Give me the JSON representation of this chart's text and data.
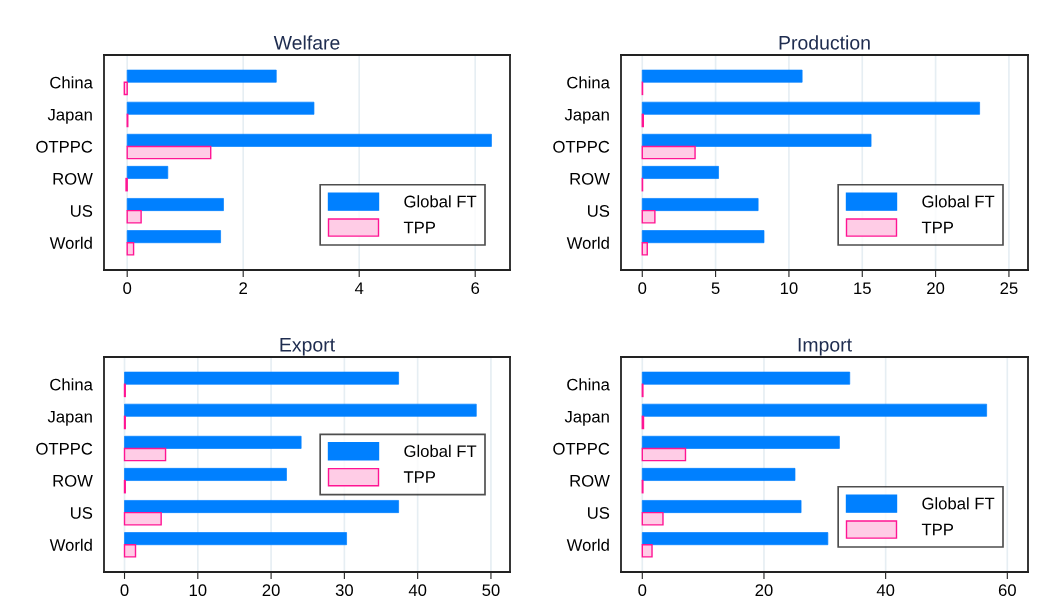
{
  "chart_data": [
    {
      "type": "bar",
      "orientation": "horizontal",
      "title": "Welfare",
      "categories": [
        "China",
        "Japan",
        "OTPPC",
        "ROW",
        "US",
        "World"
      ],
      "series": [
        {
          "name": "Global FT",
          "color": "#0080ff",
          "values": [
            2.57,
            3.22,
            6.28,
            0.7,
            1.66,
            1.61
          ]
        },
        {
          "name": "TPP",
          "color": "#ffcce6",
          "values": [
            -0.05,
            0.01,
            1.44,
            -0.02,
            0.24,
            0.11
          ]
        }
      ],
      "xlim": [
        -0.4,
        6.6
      ],
      "xticks": [
        0,
        2,
        4,
        6
      ],
      "grid": "x",
      "legend": "lower right"
    },
    {
      "type": "bar",
      "orientation": "horizontal",
      "title": "Production",
      "categories": [
        "China",
        "Japan",
        "OTPPC",
        "ROW",
        "US",
        "World"
      ],
      "series": [
        {
          "name": "Global FT",
          "color": "#0080ff",
          "values": [
            10.9,
            23.0,
            15.6,
            5.2,
            7.9,
            8.3
          ]
        },
        {
          "name": "TPP",
          "color": "#ffcce6",
          "values": [
            0.02,
            0.07,
            3.6,
            0.02,
            0.86,
            0.34
          ]
        }
      ],
      "xlim": [
        -1.45,
        26.3
      ],
      "xticks": [
        0,
        5,
        10,
        15,
        20,
        25
      ],
      "grid": "x",
      "legend": "lower right"
    },
    {
      "type": "bar",
      "orientation": "horizontal",
      "title": "Export",
      "categories": [
        "China",
        "Japan",
        "OTPPC",
        "ROW",
        "US",
        "World"
      ],
      "series": [
        {
          "name": "Global FT",
          "color": "#0080ff",
          "values": [
            37.4,
            48.0,
            24.1,
            22.1,
            37.4,
            30.3
          ]
        },
        {
          "name": "TPP",
          "color": "#ffcce6",
          "values": [
            0.1,
            0.1,
            5.6,
            0.1,
            5.0,
            1.5
          ]
        }
      ],
      "xlim": [
        -2.8,
        52.6
      ],
      "xticks": [
        0,
        10,
        20,
        30,
        40,
        50
      ],
      "grid": "x",
      "legend": "center right"
    },
    {
      "type": "bar",
      "orientation": "horizontal",
      "title": "Import",
      "categories": [
        "China",
        "Japan",
        "OTPPC",
        "ROW",
        "US",
        "World"
      ],
      "series": [
        {
          "name": "Global FT",
          "color": "#0080ff",
          "values": [
            34.1,
            56.6,
            32.4,
            25.1,
            26.1,
            30.5
          ]
        },
        {
          "name": "TPP",
          "color": "#ffcce6",
          "values": [
            0.1,
            0.2,
            7.1,
            0.1,
            3.4,
            1.6
          ]
        }
      ],
      "xlim": [
        -3.5,
        63.4
      ],
      "xticks": [
        0,
        20,
        40,
        60
      ],
      "grid": "x",
      "legend": "lower right"
    }
  ]
}
